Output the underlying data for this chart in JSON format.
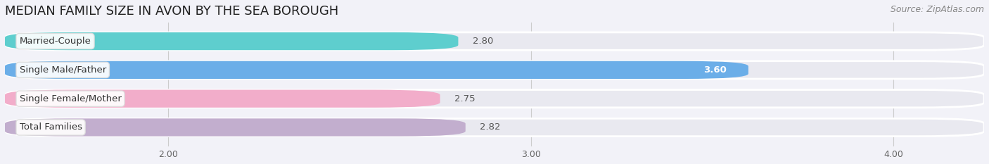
{
  "title": "MEDIAN FAMILY SIZE IN AVON BY THE SEA BOROUGH",
  "source": "Source: ZipAtlas.com",
  "categories": [
    "Married-Couple",
    "Single Male/Father",
    "Single Female/Mother",
    "Total Families"
  ],
  "values": [
    2.8,
    3.6,
    2.75,
    2.82
  ],
  "bar_colors": [
    "#5ECECE",
    "#6BAEE8",
    "#F2ADCA",
    "#C2AECE"
  ],
  "label_colors": [
    "#555555",
    "#555555",
    "#555555",
    "#555555"
  ],
  "value_label_inside": [
    false,
    true,
    false,
    false
  ],
  "xlim_left": 1.55,
  "xlim_right": 4.25,
  "xticks": [
    2.0,
    3.0,
    4.0
  ],
  "xticklabels": [
    "2.00",
    "3.00",
    "4.00"
  ],
  "bar_height": 0.62,
  "background_color": "#f2f2f8",
  "bar_bg_color": "#e9e9f0",
  "bar_bg_edge_color": "#ffffff",
  "title_fontsize": 13,
  "source_fontsize": 9,
  "tick_fontsize": 9,
  "label_fontsize": 9.5,
  "value_fontsize": 9.5,
  "rounding_size": 0.18
}
